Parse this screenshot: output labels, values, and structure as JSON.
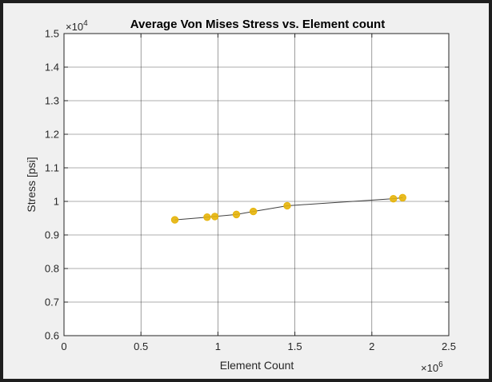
{
  "chart_data": {
    "type": "line",
    "title": "Average Von Mises Stress vs. Element count",
    "xlabel": "Element Count",
    "ylabel": "Stress [psi]",
    "x_multiplier": {
      "base": "×10",
      "exponent": "6"
    },
    "y_multiplier": {
      "base": "×10",
      "exponent": "4"
    },
    "xlim": [
      0,
      2.5
    ],
    "ylim": [
      0.6,
      1.5
    ],
    "x_ticks": [
      0,
      0.5,
      1,
      1.5,
      2,
      2.5
    ],
    "x_tick_labels": [
      "0",
      "0.5",
      "1",
      "1.5",
      "2",
      "2.5"
    ],
    "y_ticks": [
      0.6,
      0.7,
      0.8,
      0.9,
      1.0,
      1.1,
      1.2,
      1.3,
      1.4,
      1.5
    ],
    "y_tick_labels": [
      "0.6",
      "0.7",
      "0.8",
      "0.9",
      "1",
      "1.1",
      "1.2",
      "1.3",
      "1.4",
      "1.5"
    ],
    "grid": true,
    "series": [
      {
        "x": [
          0.72,
          0.93,
          0.98,
          1.12,
          1.23,
          1.45,
          2.14,
          2.2
        ],
        "y": [
          0.945,
          0.953,
          0.955,
          0.961,
          0.97,
          0.987,
          1.008,
          1.011
        ],
        "line_color": "#404040",
        "marker_color": "#e6b40a"
      }
    ]
  }
}
